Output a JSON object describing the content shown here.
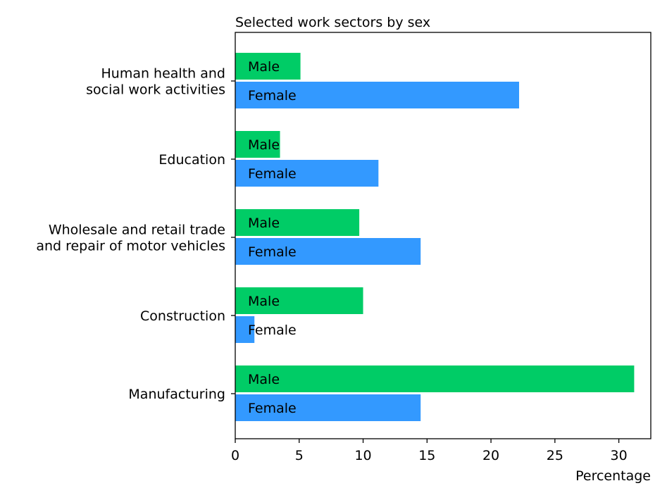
{
  "chart_data": {
    "type": "bar",
    "orientation": "horizontal",
    "title": "Selected work sectors by sex",
    "xlabel": "Percentage",
    "ylabel": "",
    "xlim": [
      0,
      32.5
    ],
    "xticks": [
      0,
      5,
      10,
      15,
      20,
      25,
      30
    ],
    "grid": false,
    "legend": "none",
    "categories": [
      [
        "Human health and",
        "social work activities"
      ],
      [
        "Education"
      ],
      [
        "Wholesale and retail trade",
        "and repair of motor vehicles"
      ],
      [
        "Construction"
      ],
      [
        "Manufacturing"
      ]
    ],
    "series": [
      {
        "name": "Male",
        "color": "#00cc66",
        "values": [
          5.1,
          3.5,
          9.7,
          10.0,
          31.2
        ]
      },
      {
        "name": "Female",
        "color": "#3399ff",
        "values": [
          22.2,
          11.2,
          14.5,
          1.5,
          14.5
        ]
      }
    ]
  }
}
